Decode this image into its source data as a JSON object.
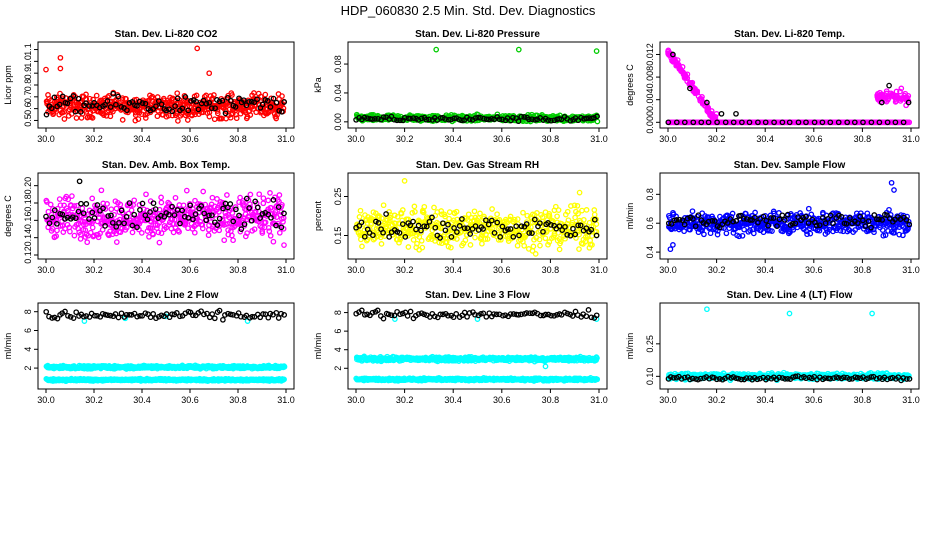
{
  "title": "HDP_060830  2.5 Min. Std. Dev. Diagnostics",
  "colors": {
    "red": "#ff0000",
    "green": "#00cc00",
    "magenta": "#ff00ff",
    "yellow": "#ffff00",
    "blue": "#0000ff",
    "cyan": "#00ffff",
    "black": "#000000"
  },
  "chart_data": [
    {
      "type": "scatter",
      "title": "Stan. Dev. Li-820 CO2",
      "ylabel": "Licor ppm",
      "xlim": [
        30.0,
        31.0
      ],
      "ylim": [
        0.47,
        1.13
      ],
      "xticks": [
        "30.0",
        "30.2",
        "30.4",
        "30.6",
        "30.8",
        "31.0"
      ],
      "yticks": [
        "0.5",
        "0.6",
        "0.7",
        "0.8",
        "0.9",
        "1.0",
        "1.1"
      ],
      "series": [
        {
          "name": "red",
          "color": "red",
          "base": 0.62,
          "spread": 0.09,
          "outliers": [
            [
              30.0,
              0.93
            ],
            [
              30.06,
              1.03
            ],
            [
              30.06,
              0.94
            ],
            [
              30.63,
              1.11
            ],
            [
              30.68,
              0.9
            ]
          ]
        },
        {
          "name": "black",
          "color": "black",
          "base": 0.63,
          "spread": 0.07,
          "outliers": []
        }
      ]
    },
    {
      "type": "scatter",
      "title": "Stan. Dev. Li-820 Pressure",
      "ylabel": "kPa",
      "xlim": [
        30.0,
        31.0
      ],
      "ylim": [
        -0.003,
        0.105
      ],
      "xticks": [
        "30.0",
        "30.2",
        "30.4",
        "30.6",
        "30.8",
        "31.0"
      ],
      "yticks": [
        "0.00",
        "0.04",
        "0.08"
      ],
      "series": [
        {
          "name": "green",
          "color": "green",
          "base": 0.005,
          "spread": 0.004,
          "outliers": [
            [
              30.33,
              0.1
            ],
            [
              30.67,
              0.1
            ],
            [
              30.99,
              0.098
            ]
          ]
        },
        {
          "name": "black",
          "color": "black",
          "base": 0.004,
          "spread": 0.003,
          "outliers": []
        }
      ]
    },
    {
      "type": "scatter",
      "title": "Stan. Dev. Li-820 Temp.",
      "ylabel": "degrees C",
      "xlim": [
        30.0,
        31.0
      ],
      "ylim": [
        -0.0003,
        0.0135
      ],
      "xticks": [
        "30.0",
        "30.2",
        "30.4",
        "30.6",
        "30.8",
        "31.0"
      ],
      "yticks": [
        "0.000",
        "0.004",
        "0.008",
        "0.012"
      ],
      "series": [
        {
          "name": "magenta",
          "color": "magenta",
          "base": 0.0,
          "spread": 0.0,
          "outliers": [
            [
              30.0,
              0.0125
            ],
            [
              30.02,
              0.0118
            ],
            [
              30.04,
              0.011
            ],
            [
              30.06,
              0.0098
            ],
            [
              30.08,
              0.0085
            ],
            [
              30.1,
              0.007
            ],
            [
              30.12,
              0.0055
            ],
            [
              30.14,
              0.0045
            ],
            [
              30.16,
              0.003
            ],
            [
              30.18,
              0.002
            ],
            [
              30.2,
              0.0015
            ],
            [
              30.87,
              0.004
            ],
            [
              30.9,
              0.0055
            ],
            [
              30.93,
              0.0045
            ],
            [
              30.96,
              0.006
            ],
            [
              30.98,
              0.003
            ]
          ]
        },
        {
          "name": "black",
          "color": "black",
          "base": 0.0,
          "spread": 0.0,
          "outliers": [
            [
              30.02,
              0.012
            ],
            [
              30.09,
              0.006
            ],
            [
              30.16,
              0.0035
            ],
            [
              30.22,
              0.0015
            ],
            [
              30.28,
              0.0015
            ],
            [
              30.88,
              0.0035
            ],
            [
              30.91,
              0.0065
            ],
            [
              30.99,
              0.0035
            ]
          ]
        }
      ]
    },
    {
      "type": "scatter",
      "title": "Stan. Dev. Amb. Box Temp.",
      "ylabel": "degrees C",
      "xlim": [
        30.0,
        31.0
      ],
      "ylim": [
        0.12,
        0.21
      ],
      "xticks": [
        "30.0",
        "30.2",
        "30.4",
        "30.6",
        "30.8",
        "31.0"
      ],
      "yticks": [
        "0.12",
        "0.14",
        "0.16",
        "0.18",
        "0.20"
      ],
      "series": [
        {
          "name": "magenta",
          "color": "magenta",
          "base": 0.163,
          "spread": 0.022,
          "outliers": []
        },
        {
          "name": "black",
          "color": "black",
          "base": 0.168,
          "spread": 0.015,
          "outliers": [
            [
              30.14,
              0.205
            ]
          ]
        }
      ]
    },
    {
      "type": "scatter",
      "title": "Stan. Dev. Gas Stream RH",
      "ylabel": "percent",
      "xlim": [
        30.0,
        31.0
      ],
      "ylim": [
        0.1,
        0.3
      ],
      "xticks": [
        "30.0",
        "30.2",
        "30.4",
        "30.6",
        "30.8",
        "31.0"
      ],
      "yticks": [
        "0.15",
        "0.25"
      ],
      "series": [
        {
          "name": "yellow",
          "color": "yellow",
          "base": 0.17,
          "spread": 0.045,
          "outliers": [
            [
              30.2,
              0.29
            ],
            [
              30.92,
              0.26
            ]
          ]
        },
        {
          "name": "black",
          "color": "black",
          "base": 0.17,
          "spread": 0.025,
          "outliers": []
        }
      ]
    },
    {
      "type": "scatter",
      "title": "Stan. Dev. Sample Flow",
      "ylabel": "ml/min",
      "xlim": [
        30.0,
        31.0
      ],
      "ylim": [
        0.38,
        0.92
      ],
      "xticks": [
        "30.0",
        "30.2",
        "30.4",
        "30.6",
        "30.8",
        "31.0"
      ],
      "yticks": [
        "0.4",
        "0.6",
        "0.8"
      ],
      "series": [
        {
          "name": "blue",
          "color": "blue",
          "base": 0.6,
          "spread": 0.07,
          "outliers": [
            [
              30.92,
              0.88
            ],
            [
              30.93,
              0.83
            ],
            [
              30.01,
              0.42
            ],
            [
              30.02,
              0.45
            ]
          ]
        },
        {
          "name": "black",
          "color": "black",
          "base": 0.62,
          "spread": 0.04,
          "outliers": []
        }
      ]
    },
    {
      "type": "scatter",
      "title": "Stan. Dev. Line 2 Flow",
      "ylabel": "ml/min",
      "xlim": [
        30.0,
        31.0
      ],
      "ylim": [
        0.2,
        8.5
      ],
      "xticks": [
        "30.0",
        "30.2",
        "30.4",
        "30.6",
        "30.8",
        "31.0"
      ],
      "yticks": [
        "2",
        "4",
        "6",
        "8"
      ],
      "series": [
        {
          "name": "cyan-upper",
          "color": "cyan",
          "base": 2.1,
          "spread": 0.15,
          "outliers": [
            [
              30.16,
              7.0
            ],
            [
              30.33,
              7.3
            ],
            [
              30.5,
              7.5
            ],
            [
              30.84,
              7.0
            ]
          ]
        },
        {
          "name": "cyan-lower",
          "color": "cyan",
          "base": 0.75,
          "spread": 0.1,
          "outliers": []
        },
        {
          "name": "black",
          "color": "black",
          "base": 7.6,
          "spread": 0.4,
          "outliers": []
        }
      ]
    },
    {
      "type": "scatter",
      "title": "Stan. Dev. Line 3 Flow",
      "ylabel": "ml/min",
      "xlim": [
        30.0,
        31.0
      ],
      "ylim": [
        0.2,
        8.6
      ],
      "xticks": [
        "30.0",
        "30.2",
        "30.4",
        "30.6",
        "30.8",
        "31.0"
      ],
      "yticks": [
        "2",
        "4",
        "6",
        "8"
      ],
      "series": [
        {
          "name": "cyan-upper",
          "color": "cyan",
          "base": 3.0,
          "spread": 0.2,
          "outliers": [
            [
              30.16,
              7.3
            ],
            [
              30.5,
              7.3
            ],
            [
              30.99,
              7.3
            ],
            [
              30.78,
              2.2
            ]
          ]
        },
        {
          "name": "cyan-lower",
          "color": "cyan",
          "base": 0.8,
          "spread": 0.12,
          "outliers": []
        },
        {
          "name": "black",
          "color": "black",
          "base": 7.8,
          "spread": 0.35,
          "outliers": []
        }
      ]
    },
    {
      "type": "scatter",
      "title": "Stan. Dev. Line 4 (LT) Flow",
      "ylabel": "ml/min",
      "xlim": [
        30.0,
        31.0
      ],
      "ylim": [
        0.06,
        0.42
      ],
      "xticks": [
        "30.0",
        "30.2",
        "30.4",
        "30.6",
        "30.8",
        "31.0"
      ],
      "yticks": [
        "0.10",
        "0.25"
      ],
      "series": [
        {
          "name": "cyan",
          "color": "cyan",
          "base": 0.1,
          "spread": 0.012,
          "outliers": [
            [
              30.16,
              0.41
            ],
            [
              30.5,
              0.39
            ],
            [
              30.84,
              0.39
            ]
          ]
        },
        {
          "name": "black",
          "color": "black",
          "base": 0.092,
          "spread": 0.008,
          "outliers": []
        }
      ]
    }
  ]
}
